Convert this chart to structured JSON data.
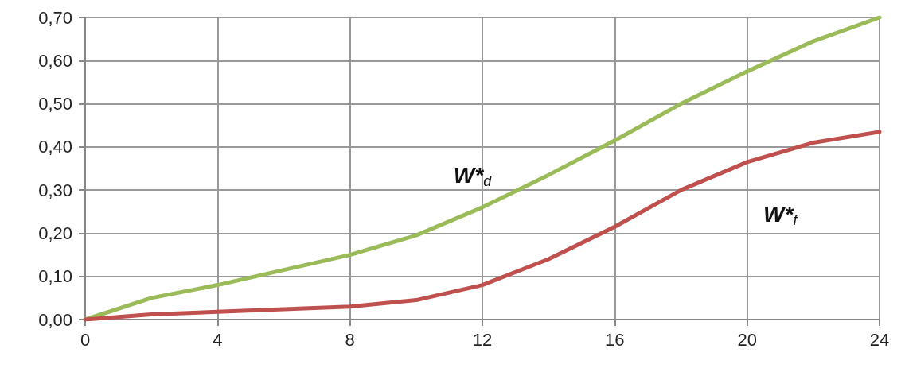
{
  "chart_data": {
    "type": "line",
    "x": [
      0,
      2,
      4,
      6,
      8,
      10,
      12,
      14,
      16,
      18,
      20,
      22,
      24
    ],
    "series": [
      {
        "name": "W*$_{d}$",
        "color": "#9bbb59",
        "values": [
          0,
          0.05,
          0.08,
          0.115,
          0.15,
          0.195,
          0.26,
          0.335,
          0.415,
          0.5,
          0.575,
          0.645,
          0.7
        ]
      },
      {
        "name": "W*$_{f}$",
        "color": "#c0504d",
        "values": [
          0,
          0.012,
          0.018,
          0.024,
          0.03,
          0.045,
          0.08,
          0.14,
          0.215,
          0.3,
          0.365,
          0.41,
          0.435
        ]
      }
    ],
    "xlim": [
      0,
      24
    ],
    "xticks": [
      0,
      4,
      8,
      12,
      16,
      20,
      24
    ],
    "ylim": [
      0,
      0.7
    ],
    "yticks": [
      {
        "value": 0,
        "label": "0,00"
      },
      {
        "value": 0.1,
        "label": "0,10"
      },
      {
        "value": 0.2,
        "label": "0,20"
      },
      {
        "value": 0.3,
        "label": "0,30"
      },
      {
        "value": 0.4,
        "label": "0,40"
      },
      {
        "value": 0.5,
        "label": "0,50"
      },
      {
        "value": 0.6,
        "label": "0,60"
      },
      {
        "value": 0.7,
        "label": "0,70"
      }
    ],
    "grid": true,
    "legend": false,
    "marker": "none",
    "line_style": "solid"
  }
}
